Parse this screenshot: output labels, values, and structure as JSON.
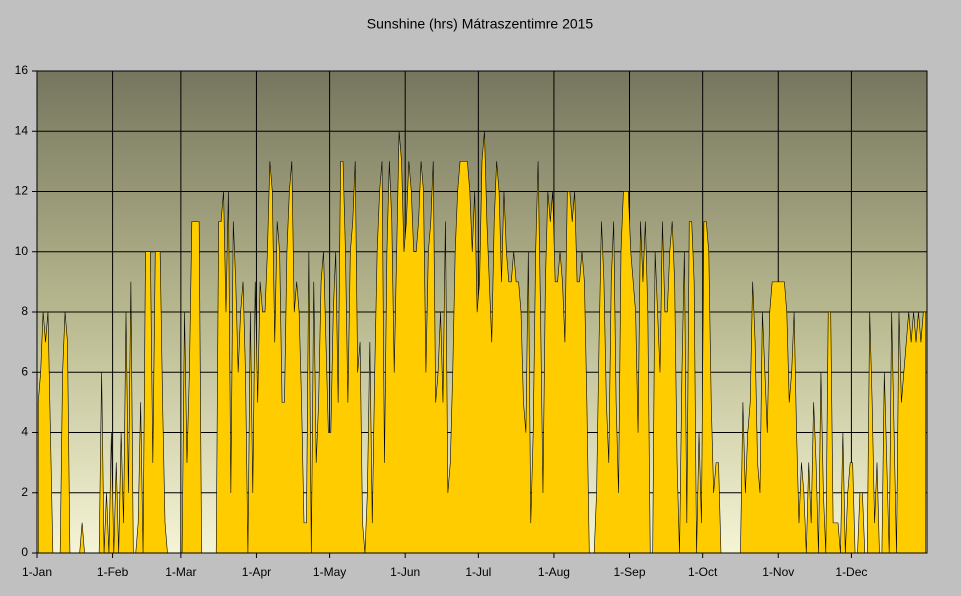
{
  "chart_data": {
    "type": "area",
    "title": "Sunshine (hrs) Mátraszentimre 2015",
    "color": "#ffcc00",
    "grid": true,
    "xlim": [
      0,
      365
    ],
    "xticks": [
      {
        "value": 0,
        "label": "1-Jan"
      },
      {
        "value": 31,
        "label": "1-Feb"
      },
      {
        "value": 59,
        "label": "1-Mar"
      },
      {
        "value": 90,
        "label": "1-Apr"
      },
      {
        "value": 120,
        "label": "1-May"
      },
      {
        "value": 151,
        "label": "1-Jun"
      },
      {
        "value": 181,
        "label": "1-Jul"
      },
      {
        "value": 212,
        "label": "1-Aug"
      },
      {
        "value": 243,
        "label": "1-Sep"
      },
      {
        "value": 273,
        "label": "1-Oct"
      },
      {
        "value": 304,
        "label": "1-Nov"
      },
      {
        "value": 334,
        "label": "1-Dec"
      }
    ],
    "ylim": [
      0,
      16
    ],
    "yticks": [
      0,
      2,
      4,
      6,
      8,
      10,
      12,
      14,
      16
    ],
    "values": [
      5,
      6,
      8,
      7,
      8,
      4,
      0,
      0,
      0,
      0,
      6,
      8,
      7,
      0,
      0,
      0,
      0,
      0,
      1,
      0,
      0,
      0,
      0,
      0,
      0,
      0,
      6,
      0,
      2,
      0,
      4,
      0,
      3,
      0,
      4,
      1,
      8,
      2,
      9,
      0,
      0,
      1,
      5,
      0,
      10,
      10,
      10,
      3,
      10,
      10,
      10,
      5,
      1,
      0,
      0,
      0,
      0,
      0,
      0,
      0,
      8,
      3,
      6,
      11,
      11,
      11,
      11,
      0,
      0,
      0,
      0,
      0,
      0,
      0,
      11,
      11,
      12,
      8,
      12,
      2,
      11,
      9,
      6,
      8,
      9,
      6,
      0,
      8,
      2,
      9,
      5,
      9,
      8,
      8,
      10,
      13,
      12,
      7,
      11,
      10,
      5,
      5,
      10,
      12,
      13,
      8,
      9,
      8,
      5,
      1,
      1,
      10,
      0,
      9,
      3,
      5,
      9,
      10,
      7,
      4,
      4,
      8,
      10,
      5,
      13,
      13,
      10,
      5,
      10,
      11,
      13,
      6,
      7,
      1,
      0,
      2,
      7,
      1,
      6,
      10,
      12,
      13,
      3,
      10,
      13,
      11,
      6,
      10,
      14,
      13,
      10,
      11,
      13,
      12,
      10,
      10,
      11,
      13,
      12,
      6,
      10,
      11,
      13,
      5,
      6,
      8,
      5,
      11,
      2,
      3,
      6,
      10,
      12,
      13,
      13,
      13,
      13,
      12,
      10,
      12,
      8,
      9,
      13,
      14,
      11,
      9,
      7,
      11,
      13,
      12,
      9,
      12,
      10,
      9,
      9,
      10,
      9,
      9,
      8,
      5,
      4,
      10,
      1,
      4,
      10,
      13,
      8,
      2,
      9,
      12,
      11,
      12,
      9,
      9,
      10,
      9,
      7,
      12,
      12,
      11,
      12,
      9,
      9,
      10,
      9,
      5,
      0,
      0,
      0,
      2,
      7,
      11,
      9,
      5,
      3,
      9,
      11,
      5,
      2,
      10,
      12,
      12,
      12,
      10,
      9,
      8,
      4,
      11,
      9,
      11,
      8,
      0,
      0,
      10,
      8,
      6,
      11,
      8,
      8,
      10,
      11,
      9,
      3,
      0,
      6,
      10,
      1,
      11,
      11,
      9,
      0,
      4,
      1,
      11,
      11,
      10,
      5,
      2,
      3,
      3,
      0,
      0,
      0,
      0,
      0,
      0,
      0,
      0,
      0,
      5,
      2,
      4,
      5,
      9,
      7,
      3,
      2,
      8,
      6,
      4,
      8,
      9,
      9,
      9,
      9,
      9,
      9,
      8,
      5,
      6,
      8,
      4,
      1,
      3,
      2,
      0,
      3,
      1,
      5,
      3,
      0,
      6,
      2,
      0,
      8,
      8,
      1,
      1,
      1,
      0,
      4,
      0,
      2,
      3,
      3,
      0,
      0,
      2,
      2,
      0,
      0,
      8,
      5,
      1,
      3,
      0,
      0,
      6,
      3,
      0,
      8,
      4,
      0,
      8,
      5,
      6,
      7,
      8,
      7,
      8,
      7,
      8,
      7,
      8,
      8
    ]
  }
}
